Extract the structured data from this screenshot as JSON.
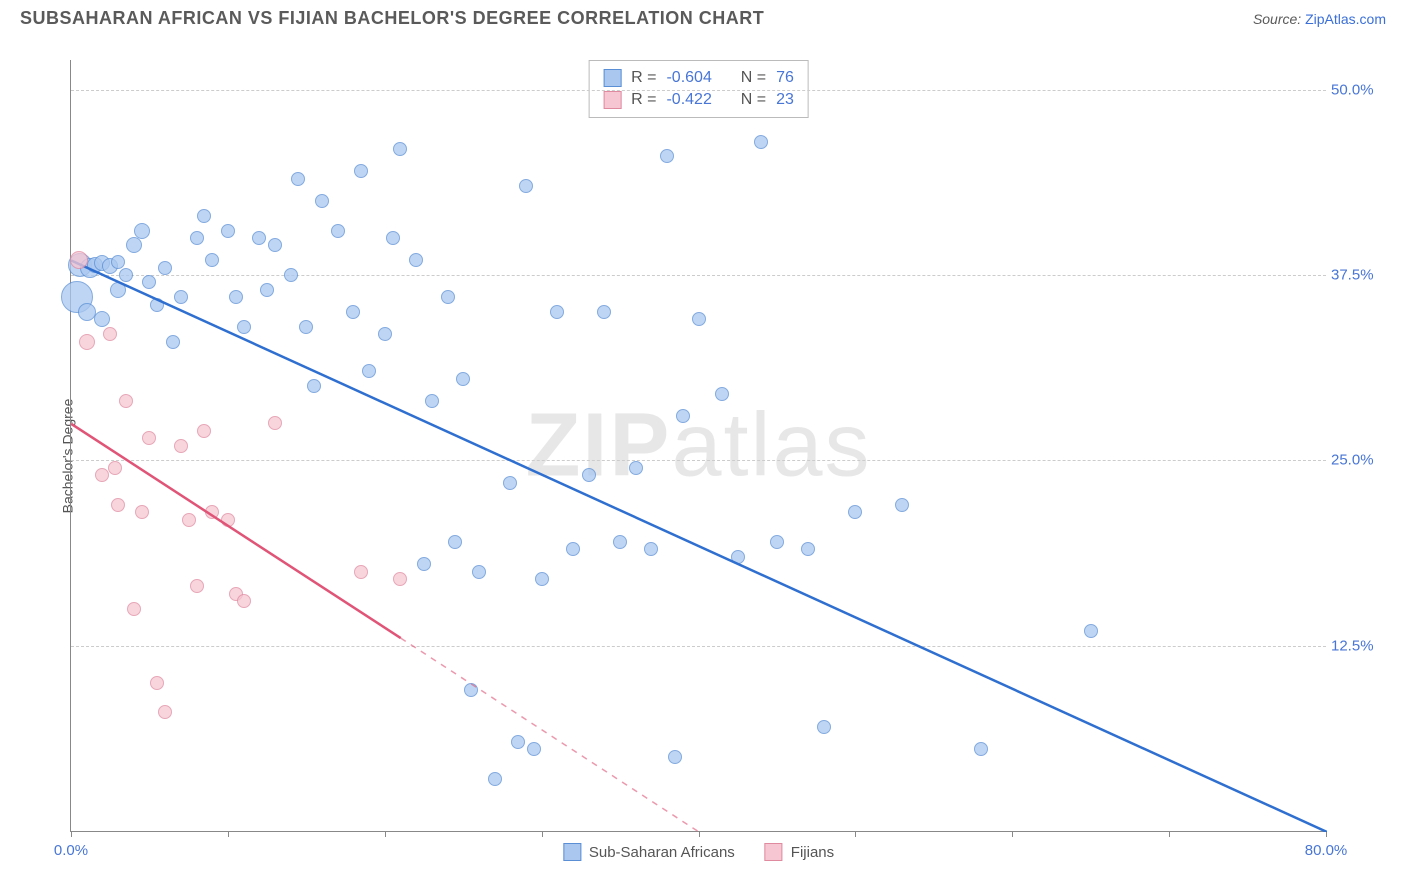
{
  "header": {
    "title": "SUBSAHARAN AFRICAN VS FIJIAN BACHELOR'S DEGREE CORRELATION CHART",
    "source_label": "Source:",
    "source_link": "ZipAtlas.com"
  },
  "watermark": {
    "bold": "ZIP",
    "rest": "atlas"
  },
  "chart": {
    "ylabel": "Bachelor's Degree",
    "xlim": [
      0,
      80
    ],
    "ylim": [
      0,
      52
    ],
    "xtick_positions": [
      0,
      10,
      20,
      30,
      40,
      50,
      60,
      70,
      80
    ],
    "xtick_labels_shown": {
      "0": "0.0%",
      "80": "80.0%"
    },
    "ytick_positions": [
      12.5,
      25.0,
      37.5,
      50.0
    ],
    "ytick_labels": [
      "12.5%",
      "25.0%",
      "37.5%",
      "50.0%"
    ],
    "grid_color": "#cccccc",
    "tick_label_color": "#4876d6",
    "series": [
      {
        "key": "ssa",
        "name": "Sub-Saharan Africans",
        "fill": "#a9c7ef",
        "stroke": "#5a8fd6",
        "line_color": "#2f6fd0",
        "r_value": "-0.604",
        "n_value": "76",
        "regression": {
          "x1": 0,
          "y1": 38.5,
          "x2": 80,
          "y2": 0,
          "solid_until_x": 80
        },
        "points": [
          {
            "x": 0.4,
            "y": 36.0,
            "r": 16
          },
          {
            "x": 0.6,
            "y": 38.2,
            "r": 12
          },
          {
            "x": 1.2,
            "y": 38.0,
            "r": 10
          },
          {
            "x": 1.5,
            "y": 38.2,
            "r": 8
          },
          {
            "x": 2.0,
            "y": 38.3,
            "r": 8
          },
          {
            "x": 2.5,
            "y": 38.1,
            "r": 8
          },
          {
            "x": 3.0,
            "y": 38.4,
            "r": 7
          },
          {
            "x": 3.5,
            "y": 37.5,
            "r": 7
          },
          {
            "x": 1.0,
            "y": 35.0,
            "r": 9
          },
          {
            "x": 2.0,
            "y": 34.5,
            "r": 8
          },
          {
            "x": 3.0,
            "y": 36.5,
            "r": 8
          },
          {
            "x": 4.0,
            "y": 39.5,
            "r": 8
          },
          {
            "x": 4.5,
            "y": 40.5,
            "r": 8
          },
          {
            "x": 5.0,
            "y": 37.0,
            "r": 7
          },
          {
            "x": 5.5,
            "y": 35.5,
            "r": 7
          },
          {
            "x": 6.0,
            "y": 38.0,
            "r": 7
          },
          {
            "x": 6.5,
            "y": 33.0,
            "r": 7
          },
          {
            "x": 7.0,
            "y": 36.0,
            "r": 7
          },
          {
            "x": 8.0,
            "y": 40.0,
            "r": 7
          },
          {
            "x": 8.5,
            "y": 41.5,
            "r": 7
          },
          {
            "x": 9.0,
            "y": 38.5,
            "r": 7
          },
          {
            "x": 10.0,
            "y": 40.5,
            "r": 7
          },
          {
            "x": 10.5,
            "y": 36.0,
            "r": 7
          },
          {
            "x": 11.0,
            "y": 34.0,
            "r": 7
          },
          {
            "x": 12.0,
            "y": 40.0,
            "r": 7
          },
          {
            "x": 12.5,
            "y": 36.5,
            "r": 7
          },
          {
            "x": 13.0,
            "y": 39.5,
            "r": 7
          },
          {
            "x": 14.0,
            "y": 37.5,
            "r": 7
          },
          {
            "x": 14.5,
            "y": 44.0,
            "r": 7
          },
          {
            "x": 15.0,
            "y": 34.0,
            "r": 7
          },
          {
            "x": 15.5,
            "y": 30.0,
            "r": 7
          },
          {
            "x": 16.0,
            "y": 42.5,
            "r": 7
          },
          {
            "x": 17.0,
            "y": 40.5,
            "r": 7
          },
          {
            "x": 18.0,
            "y": 35.0,
            "r": 7
          },
          {
            "x": 18.5,
            "y": 44.5,
            "r": 7
          },
          {
            "x": 19.0,
            "y": 31.0,
            "r": 7
          },
          {
            "x": 20.0,
            "y": 33.5,
            "r": 7
          },
          {
            "x": 20.5,
            "y": 40.0,
            "r": 7
          },
          {
            "x": 21.0,
            "y": 46.0,
            "r": 7
          },
          {
            "x": 22.0,
            "y": 38.5,
            "r": 7
          },
          {
            "x": 22.5,
            "y": 18.0,
            "r": 7
          },
          {
            "x": 23.0,
            "y": 29.0,
            "r": 7
          },
          {
            "x": 24.0,
            "y": 36.0,
            "r": 7
          },
          {
            "x": 24.5,
            "y": 19.5,
            "r": 7
          },
          {
            "x": 25.0,
            "y": 30.5,
            "r": 7
          },
          {
            "x": 25.5,
            "y": 9.5,
            "r": 7
          },
          {
            "x": 26.0,
            "y": 17.5,
            "r": 7
          },
          {
            "x": 27.0,
            "y": 3.5,
            "r": 7
          },
          {
            "x": 28.0,
            "y": 23.5,
            "r": 7
          },
          {
            "x": 28.5,
            "y": 6.0,
            "r": 7
          },
          {
            "x": 29.0,
            "y": 43.5,
            "r": 7
          },
          {
            "x": 29.5,
            "y": 5.5,
            "r": 7
          },
          {
            "x": 30.0,
            "y": 17.0,
            "r": 7
          },
          {
            "x": 31.0,
            "y": 35.0,
            "r": 7
          },
          {
            "x": 32.0,
            "y": 19.0,
            "r": 7
          },
          {
            "x": 33.0,
            "y": 24.0,
            "r": 7
          },
          {
            "x": 34.0,
            "y": 35.0,
            "r": 7
          },
          {
            "x": 35.0,
            "y": 19.5,
            "r": 7
          },
          {
            "x": 36.0,
            "y": 24.5,
            "r": 7
          },
          {
            "x": 37.0,
            "y": 19.0,
            "r": 7
          },
          {
            "x": 38.0,
            "y": 45.5,
            "r": 7
          },
          {
            "x": 38.5,
            "y": 5.0,
            "r": 7
          },
          {
            "x": 39.0,
            "y": 28.0,
            "r": 7
          },
          {
            "x": 40.0,
            "y": 34.5,
            "r": 7
          },
          {
            "x": 41.5,
            "y": 29.5,
            "r": 7
          },
          {
            "x": 42.5,
            "y": 18.5,
            "r": 7
          },
          {
            "x": 44.0,
            "y": 46.5,
            "r": 7
          },
          {
            "x": 45.0,
            "y": 19.5,
            "r": 7
          },
          {
            "x": 47.0,
            "y": 19.0,
            "r": 7
          },
          {
            "x": 48.0,
            "y": 7.0,
            "r": 7
          },
          {
            "x": 50.0,
            "y": 21.5,
            "r": 7
          },
          {
            "x": 53.0,
            "y": 22.0,
            "r": 7
          },
          {
            "x": 58.0,
            "y": 5.5,
            "r": 7
          },
          {
            "x": 65.0,
            "y": 13.5,
            "r": 7
          }
        ]
      },
      {
        "key": "fij",
        "name": "Fijians",
        "fill": "#f6c6d2",
        "stroke": "#e08aa0",
        "line_color": "#e05577",
        "r_value": "-0.422",
        "n_value": "23",
        "regression": {
          "x1": 0,
          "y1": 27.5,
          "x2": 40,
          "y2": 0,
          "solid_until_x": 21
        },
        "points": [
          {
            "x": 0.5,
            "y": 38.5,
            "r": 9
          },
          {
            "x": 1.0,
            "y": 33.0,
            "r": 8
          },
          {
            "x": 2.5,
            "y": 33.5,
            "r": 7
          },
          {
            "x": 2.0,
            "y": 24.0,
            "r": 7
          },
          {
            "x": 2.8,
            "y": 24.5,
            "r": 7
          },
          {
            "x": 3.0,
            "y": 22.0,
            "r": 7
          },
          {
            "x": 3.5,
            "y": 29.0,
            "r": 7
          },
          {
            "x": 4.0,
            "y": 15.0,
            "r": 7
          },
          {
            "x": 4.5,
            "y": 21.5,
            "r": 7
          },
          {
            "x": 5.0,
            "y": 26.5,
            "r": 7
          },
          {
            "x": 5.5,
            "y": 10.0,
            "r": 7
          },
          {
            "x": 6.0,
            "y": 8.0,
            "r": 7
          },
          {
            "x": 7.0,
            "y": 26.0,
            "r": 7
          },
          {
            "x": 7.5,
            "y": 21.0,
            "r": 7
          },
          {
            "x": 8.0,
            "y": 16.5,
            "r": 7
          },
          {
            "x": 8.5,
            "y": 27.0,
            "r": 7
          },
          {
            "x": 9.0,
            "y": 21.5,
            "r": 7
          },
          {
            "x": 10.0,
            "y": 21.0,
            "r": 7
          },
          {
            "x": 10.5,
            "y": 16.0,
            "r": 7
          },
          {
            "x": 11.0,
            "y": 15.5,
            "r": 7
          },
          {
            "x": 13.0,
            "y": 27.5,
            "r": 7
          },
          {
            "x": 18.5,
            "y": 17.5,
            "r": 7
          },
          {
            "x": 21.0,
            "y": 17.0,
            "r": 7
          }
        ]
      }
    ]
  },
  "stats_legend": {
    "r_label": "R =",
    "n_label": "N ="
  },
  "colors": {
    "title": "#5a5a5a",
    "link": "#3a6fd8",
    "axis": "#888888",
    "legend_border": "#bbbbbb"
  }
}
